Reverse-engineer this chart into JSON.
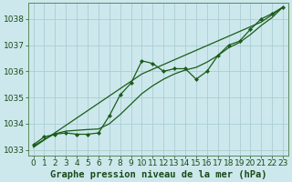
{
  "title": "Graphe pression niveau de la mer (hPa)",
  "background_color": "#cce8ec",
  "grid_color": "#aacdd2",
  "line_color_trend": "#1a5c1a",
  "line_color_main": "#1a5c1a",
  "x_values": [
    0,
    1,
    2,
    3,
    4,
    5,
    6,
    7,
    8,
    9,
    10,
    11,
    12,
    13,
    14,
    15,
    16,
    17,
    18,
    19,
    20,
    21,
    22,
    23
  ],
  "y_values_main": [
    1033.2,
    1033.5,
    1033.6,
    1033.65,
    1033.6,
    1033.6,
    1033.65,
    1034.3,
    1035.1,
    1035.55,
    1036.4,
    1036.3,
    1036.0,
    1036.1,
    1036.1,
    1035.7,
    1036.0,
    1036.6,
    1037.0,
    1037.15,
    1037.6,
    1038.0,
    1038.2,
    1038.45
  ],
  "y_values_smooth": [
    1033.15,
    1033.4,
    1033.62,
    1033.72,
    1033.75,
    1033.78,
    1033.8,
    1034.0,
    1034.35,
    1034.75,
    1035.15,
    1035.45,
    1035.7,
    1035.9,
    1036.05,
    1036.15,
    1036.35,
    1036.6,
    1036.9,
    1037.1,
    1037.4,
    1037.75,
    1038.05,
    1038.45
  ],
  "y_values_trend": [
    1033.1,
    1033.38,
    1033.66,
    1033.94,
    1034.22,
    1034.5,
    1034.78,
    1035.06,
    1035.34,
    1035.62,
    1035.9,
    1036.08,
    1036.26,
    1036.44,
    1036.62,
    1036.8,
    1036.98,
    1037.16,
    1037.34,
    1037.52,
    1037.7,
    1037.88,
    1038.16,
    1038.45
  ],
  "ylim": [
    1032.8,
    1038.6
  ],
  "yticks": [
    1033,
    1034,
    1035,
    1036,
    1037,
    1038
  ],
  "xlim": [
    -0.5,
    23.5
  ],
  "xticks": [
    0,
    1,
    2,
    3,
    4,
    5,
    6,
    7,
    8,
    9,
    10,
    11,
    12,
    13,
    14,
    15,
    16,
    17,
    18,
    19,
    20,
    21,
    22,
    23
  ],
  "title_fontsize": 7.5,
  "tick_fontsize": 6.5
}
